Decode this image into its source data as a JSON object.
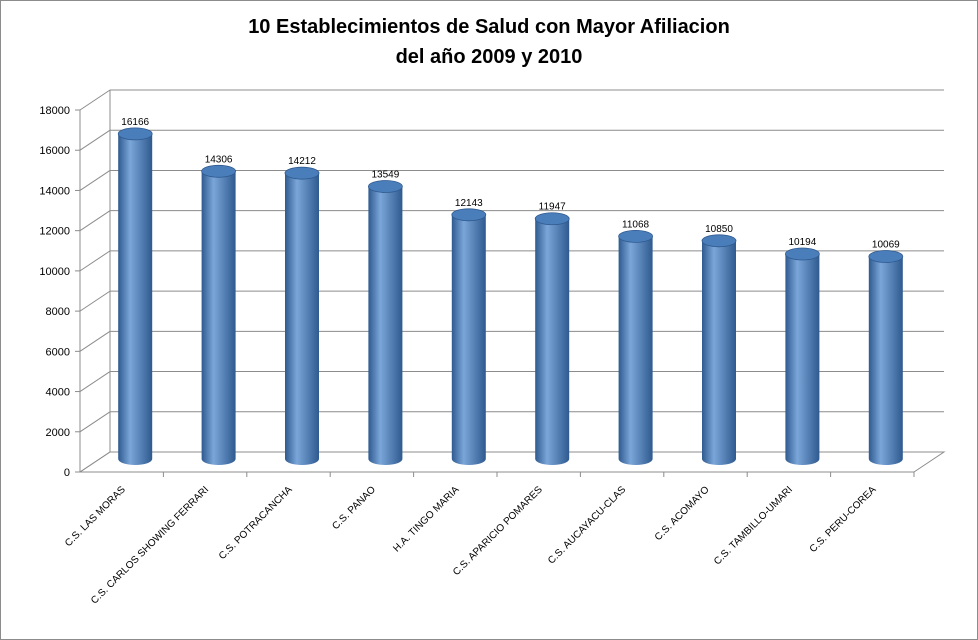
{
  "chart_data": {
    "type": "bar",
    "title_line1": "10 Establecimientos de Salud con Mayor Afiliacion",
    "title_line2": "del año 2009 y 2010",
    "categories": [
      "C.S. LAS MORAS",
      "C.S. CARLOS SHOWING FERRARI",
      "C.S. POTRACANCHA",
      "C.S. PANAO",
      "H.A. TINGO MARIA",
      "C.S. APARICIO POMARES",
      "C.S. AUCAYACU-CLAS",
      "C.S. ACOMAYO",
      "C.S. TAMBILLO-UMARI",
      "C.S. PERU-COREA"
    ],
    "values": [
      16166,
      14306,
      14212,
      13549,
      12143,
      11947,
      11068,
      10850,
      10194,
      10069
    ],
    "ylim": [
      0,
      18000
    ],
    "yticks": [
      0,
      2000,
      4000,
      6000,
      8000,
      10000,
      12000,
      14000,
      16000,
      18000
    ],
    "grid": true,
    "legend": "none",
    "bar_color": "#4a7ebb",
    "bar_dark": "#2f5a8f",
    "bar_light": "#7aa6da"
  }
}
